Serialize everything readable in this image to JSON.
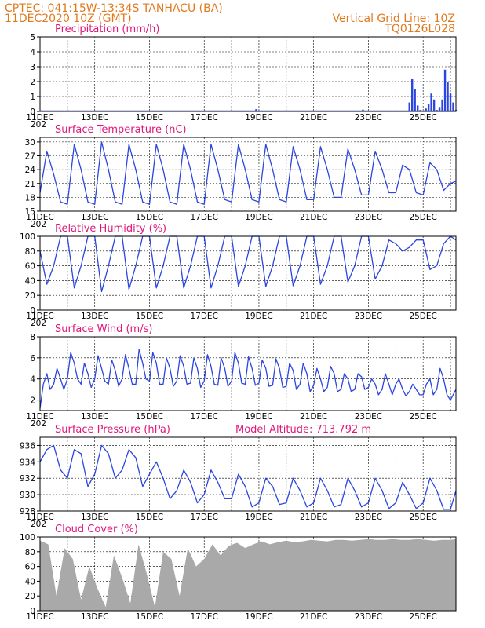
{
  "header": {
    "line1": "CPTEC:  041:15W-13:34S  TANHACU (BA)",
    "line2_left": "11DEC2020 10Z (GMT)",
    "line2_right": "Vertical Grid Line: 10Z",
    "line3_right": "TQ0126L028"
  },
  "axis": {
    "date_labels": [
      "11DEC",
      "13DEC",
      "15DEC",
      "17DEC",
      "19DEC",
      "21DEC",
      "23DEC",
      "25DEC"
    ],
    "year_stub": "202"
  },
  "colors": {
    "line": "#2b45e0",
    "bar": "#2b45e0",
    "cloud": "#a9a9a9",
    "header": "#e07a1f",
    "title": "#e0177a"
  },
  "chart_data": [
    {
      "id": "precip",
      "type": "bar",
      "title": "Precipitation (mm/h)",
      "x_unit": "days since 11DEC2020 10Z",
      "ylim": [
        0,
        5
      ],
      "yticks": [
        0,
        1,
        2,
        3,
        4,
        5
      ],
      "x": [
        0,
        2,
        4,
        6,
        7.9,
        8,
        10,
        11.8,
        12,
        13.5,
        13.6,
        13.7,
        13.8,
        13.9,
        14.0,
        14.1,
        14.2,
        14.3,
        14.4,
        14.5,
        14.6,
        14.7,
        14.8,
        14.9,
        15.0,
        15.1,
        15.2
      ],
      "values": [
        0.03,
        0.03,
        0.03,
        0.03,
        0.15,
        0.05,
        0.03,
        0.12,
        0.04,
        0.6,
        2.2,
        1.5,
        0.4,
        0.1,
        0.05,
        0.2,
        0.5,
        1.2,
        0.8,
        0.1,
        0.3,
        0.8,
        2.8,
        2.0,
        1.2,
        0.6,
        0.1
      ]
    },
    {
      "id": "temp",
      "type": "line",
      "title": "Surface Temperature (nC)",
      "x_unit": "days since 11DEC2020 10Z",
      "ylim": [
        15,
        31
      ],
      "yticks": [
        15,
        18,
        21,
        24,
        27,
        30
      ],
      "x": [
        0,
        0.25,
        0.5,
        0.75,
        1,
        1.25,
        1.5,
        1.75,
        2,
        2.25,
        2.5,
        2.75,
        3,
        3.25,
        3.5,
        3.75,
        4,
        4.25,
        4.5,
        4.75,
        5,
        5.25,
        5.5,
        5.75,
        6,
        6.25,
        6.5,
        6.75,
        7,
        7.25,
        7.5,
        7.75,
        8,
        8.25,
        8.5,
        8.75,
        9,
        9.25,
        9.5,
        9.75,
        10,
        10.25,
        10.5,
        10.75,
        11,
        11.25,
        11.5,
        11.75,
        12,
        12.25,
        12.5,
        12.75,
        13,
        13.25,
        13.5,
        13.75,
        14,
        14.25,
        14.5,
        14.75,
        15,
        15.2
      ],
      "values": [
        19,
        28,
        23,
        17,
        16.5,
        29.5,
        24,
        17,
        16.5,
        30,
        24,
        17,
        16.5,
        29.5,
        24,
        17,
        16.5,
        29.5,
        24,
        17,
        16.5,
        29.5,
        24,
        17,
        16.5,
        29.5,
        24,
        17.5,
        17,
        29.5,
        24,
        17.5,
        17,
        29.5,
        24,
        17.5,
        17,
        29,
        24,
        17.5,
        17.5,
        29,
        24,
        18,
        18,
        28.5,
        24,
        18.5,
        18.5,
        28,
        24,
        19,
        19,
        25,
        24,
        19,
        18.5,
        25.5,
        24,
        19.5,
        21,
        21.5
      ]
    },
    {
      "id": "rh",
      "type": "line",
      "title": "Relative Humidity (%)",
      "x_unit": "days since 11DEC2020 10Z",
      "ylim": [
        0,
        100
      ],
      "yticks": [
        0,
        20,
        40,
        60,
        80,
        100
      ],
      "x": [
        0,
        0.25,
        0.5,
        0.75,
        1,
        1.25,
        1.5,
        1.75,
        2,
        2.25,
        2.5,
        2.75,
        3,
        3.25,
        3.5,
        3.75,
        4,
        4.25,
        4.5,
        4.75,
        5,
        5.25,
        5.5,
        5.75,
        6,
        6.25,
        6.5,
        6.75,
        7,
        7.25,
        7.5,
        7.75,
        8,
        8.25,
        8.5,
        8.75,
        9,
        9.25,
        9.5,
        9.75,
        10,
        10.25,
        10.5,
        10.75,
        11,
        11.25,
        11.5,
        11.75,
        12,
        12.25,
        12.5,
        12.75,
        13,
        13.25,
        13.5,
        13.75,
        14,
        14.25,
        14.5,
        14.75,
        15,
        15.2
      ],
      "values": [
        80,
        35,
        60,
        100,
        100,
        30,
        60,
        100,
        100,
        25,
        60,
        100,
        100,
        28,
        60,
        100,
        100,
        30,
        60,
        100,
        100,
        30,
        60,
        100,
        100,
        30,
        60,
        100,
        100,
        32,
        60,
        100,
        100,
        32,
        60,
        100,
        100,
        33,
        60,
        100,
        100,
        35,
        60,
        100,
        100,
        38,
        60,
        100,
        100,
        42,
        60,
        95,
        90,
        80,
        85,
        95,
        95,
        55,
        60,
        90,
        100,
        95
      ]
    },
    {
      "id": "wind",
      "type": "line",
      "title": "Surface Wind (m/s)",
      "x_unit": "days since 11DEC2020 10Z",
      "ylim": [
        1,
        8
      ],
      "yticks": [
        2,
        4,
        6,
        8
      ],
      "x": [
        0,
        0.12,
        0.25,
        0.37,
        0.5,
        0.62,
        0.75,
        0.87,
        1,
        1.12,
        1.25,
        1.37,
        1.5,
        1.62,
        1.75,
        1.87,
        2,
        2.12,
        2.25,
        2.37,
        2.5,
        2.62,
        2.75,
        2.87,
        3,
        3.12,
        3.25,
        3.37,
        3.5,
        3.62,
        3.75,
        3.87,
        4,
        4.12,
        4.25,
        4.37,
        4.5,
        4.62,
        4.75,
        4.87,
        5,
        5.12,
        5.25,
        5.37,
        5.5,
        5.62,
        5.75,
        5.87,
        6,
        6.12,
        6.25,
        6.37,
        6.5,
        6.62,
        6.75,
        6.87,
        7,
        7.12,
        7.25,
        7.37,
        7.5,
        7.62,
        7.75,
        7.87,
        8,
        8.12,
        8.25,
        8.37,
        8.5,
        8.62,
        8.75,
        8.87,
        9,
        9.12,
        9.25,
        9.37,
        9.5,
        9.62,
        9.75,
        9.87,
        10,
        10.12,
        10.25,
        10.37,
        10.5,
        10.62,
        10.75,
        10.87,
        11,
        11.12,
        11.25,
        11.37,
        11.5,
        11.62,
        11.75,
        11.87,
        12,
        12.12,
        12.25,
        12.37,
        12.5,
        12.62,
        12.75,
        12.87,
        13,
        13.12,
        13.25,
        13.37,
        13.5,
        13.62,
        13.75,
        13.87,
        14,
        14.12,
        14.25,
        14.37,
        14.5,
        14.62,
        14.75,
        14.87,
        15,
        15.2
      ],
      "values": [
        1.2,
        3.5,
        4.5,
        3,
        3.5,
        5,
        4,
        3,
        4,
        6.5,
        5.5,
        4,
        3.5,
        5.5,
        4.5,
        3.2,
        4,
        6.2,
        5,
        3.8,
        3.5,
        5.8,
        4.8,
        3.3,
        4,
        6.3,
        5,
        3.5,
        3.5,
        6.8,
        5.5,
        4,
        3.8,
        6.5,
        5.5,
        3.5,
        3.5,
        6,
        5,
        3.3,
        3.8,
        6.2,
        5.2,
        3.5,
        3.6,
        6,
        5,
        3.2,
        3.8,
        6.3,
        5.2,
        3.5,
        3.4,
        6,
        5,
        3.3,
        3.8,
        6.5,
        5.5,
        3.6,
        3.5,
        6.1,
        5,
        3.4,
        3.6,
        5.8,
        5,
        3.3,
        3.4,
        5.9,
        5,
        3.2,
        3.3,
        5.5,
        4.8,
        3,
        3.5,
        5.5,
        4.5,
        2.8,
        3.4,
        5,
        4,
        2.8,
        3.2,
        5.2,
        4.5,
        2.8,
        3,
        4.5,
        4,
        2.8,
        3,
        4.5,
        4.2,
        3,
        3.2,
        4,
        3.5,
        2.5,
        3,
        4.5,
        3.5,
        2.5,
        3.5,
        4,
        3,
        2.4,
        2.8,
        3.5,
        3,
        2.5,
        2.5,
        3.5,
        4,
        2.5,
        3,
        5,
        4,
        2.5,
        2,
        3
      ]
    },
    {
      "id": "pressure",
      "type": "line",
      "title": "Surface Pressure (hPa)",
      "annotation": "Model Altitude: 713.792 m",
      "x_unit": "days since 11DEC2020 10Z",
      "ylim": [
        928,
        937
      ],
      "yticks": [
        928,
        930,
        932,
        934,
        936
      ],
      "x": [
        0,
        0.25,
        0.5,
        0.75,
        1,
        1.25,
        1.5,
        1.75,
        2,
        2.25,
        2.5,
        2.75,
        3,
        3.25,
        3.5,
        3.75,
        4,
        4.25,
        4.5,
        4.75,
        5,
        5.25,
        5.5,
        5.75,
        6,
        6.25,
        6.5,
        6.75,
        7,
        7.25,
        7.5,
        7.75,
        8,
        8.25,
        8.5,
        8.75,
        9,
        9.25,
        9.5,
        9.75,
        10,
        10.25,
        10.5,
        10.75,
        11,
        11.25,
        11.5,
        11.75,
        12,
        12.25,
        12.5,
        12.75,
        13,
        13.25,
        13.5,
        13.75,
        14,
        14.25,
        14.5,
        14.75,
        15,
        15.2
      ],
      "values": [
        934,
        935.5,
        936,
        933,
        932,
        935.5,
        935,
        931,
        932.5,
        936,
        935,
        932,
        933,
        935.5,
        934.5,
        931,
        932.5,
        934,
        932,
        929.5,
        930.5,
        933,
        931.5,
        929,
        930,
        933,
        931.5,
        929.5,
        929.5,
        932.5,
        931,
        928.5,
        929,
        932,
        931,
        928.8,
        929,
        932,
        930.5,
        928.5,
        929,
        932,
        930.5,
        928.5,
        928.8,
        932,
        930.5,
        928.5,
        929,
        932,
        930.5,
        928.3,
        929,
        931.5,
        930,
        928.3,
        929,
        932,
        930.5,
        928.2,
        928.2,
        930.5
      ]
    },
    {
      "id": "cloud",
      "type": "area",
      "title": "Cloud Cover (%)",
      "x_unit": "days since 11DEC2020 10Z",
      "ylim": [
        0,
        100
      ],
      "yticks": [
        0,
        20,
        40,
        60,
        80,
        100
      ],
      "x": [
        0,
        0.3,
        0.6,
        0.9,
        1.2,
        1.5,
        1.8,
        2.1,
        2.4,
        2.7,
        3.0,
        3.3,
        3.6,
        3.9,
        4.2,
        4.5,
        4.8,
        5.1,
        5.4,
        5.7,
        6.0,
        6.3,
        6.6,
        6.9,
        7.2,
        7.5,
        7.8,
        8.1,
        8.4,
        8.7,
        9.0,
        9.3,
        9.6,
        9.9,
        10.2,
        10.5,
        10.8,
        11.1,
        11.4,
        11.7,
        12.0,
        12.3,
        12.6,
        12.9,
        13.2,
        13.5,
        13.8,
        14.1,
        14.4,
        14.7,
        15.0,
        15.2
      ],
      "values": [
        95,
        90,
        20,
        85,
        70,
        15,
        60,
        30,
        5,
        75,
        45,
        10,
        90,
        50,
        5,
        80,
        70,
        20,
        85,
        60,
        70,
        90,
        75,
        88,
        92,
        85,
        90,
        94,
        90,
        93,
        95,
        93,
        94,
        96,
        95,
        94,
        96,
        96,
        95,
        96,
        97,
        96,
        96,
        97,
        96,
        96,
        97,
        96,
        95,
        96,
        96,
        97
      ]
    }
  ]
}
